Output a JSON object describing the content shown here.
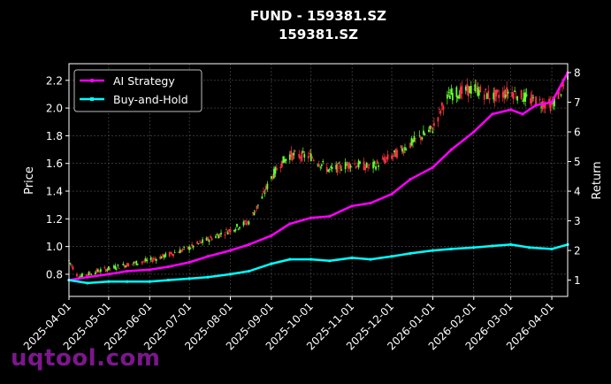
{
  "chart_data": {
    "type": "line",
    "title": "FUND - 159381.SZ",
    "subtitle": "159381.SZ",
    "ylabel": "Price",
    "y2label": "Return",
    "ylim": [
      0.64,
      2.32
    ],
    "y2lim": [
      0.45,
      8.3
    ],
    "y_ticks": [
      "0.8",
      "1.0",
      "1.2",
      "1.4",
      "1.6",
      "1.8",
      "2.0",
      "2.2"
    ],
    "y2_ticks": [
      "1",
      "2",
      "3",
      "4",
      "5",
      "6",
      "7",
      "8"
    ],
    "x_ticks": [
      "2025-04-01",
      "2025-05-01",
      "2025-06-01",
      "2025-07-01",
      "2025-08-01",
      "2025-09-01",
      "2025-10-01",
      "2025-11-01",
      "2025-12-01",
      "2026-01-01",
      "2026-02-01",
      "2026-03-01",
      "2026-04-01"
    ],
    "xlim": [
      "2025-04-01",
      "2026-04-13"
    ],
    "grid": true,
    "legend_position": "top-left",
    "candles_up_color": "#66ff33",
    "candles_down_color": "#ff3344",
    "price_series": {
      "x": [
        "2025-04-01",
        "2025-04-08",
        "2025-04-15",
        "2025-04-22",
        "2025-05-01",
        "2025-05-15",
        "2025-06-01",
        "2025-06-15",
        "2025-07-01",
        "2025-07-15",
        "2025-08-01",
        "2025-08-15",
        "2025-08-25",
        "2025-09-01",
        "2025-09-08",
        "2025-09-15",
        "2025-10-01",
        "2025-10-15",
        "2025-11-01",
        "2025-11-15",
        "2025-12-01",
        "2025-12-15",
        "2026-01-01",
        "2026-01-10",
        "2026-01-15",
        "2026-01-25",
        "2026-02-01",
        "2026-02-15",
        "2026-03-01",
        "2026-03-15",
        "2026-04-01",
        "2026-04-13"
      ],
      "values": [
        0.9,
        0.78,
        0.8,
        0.82,
        0.84,
        0.87,
        0.9,
        0.94,
        0.99,
        1.05,
        1.12,
        1.18,
        1.35,
        1.5,
        1.6,
        1.66,
        1.65,
        1.55,
        1.6,
        1.57,
        1.65,
        1.74,
        1.85,
        2.05,
        2.1,
        2.12,
        2.14,
        2.08,
        2.12,
        2.06,
        2.02,
        2.2
      ]
    },
    "series": [
      {
        "name": "AI Strategy",
        "color": "#ff00ff",
        "x": [
          "2025-04-01",
          "2025-04-15",
          "2025-05-01",
          "2025-05-15",
          "2025-06-01",
          "2025-06-15",
          "2025-07-01",
          "2025-07-15",
          "2025-08-01",
          "2025-08-15",
          "2025-09-01",
          "2025-09-15",
          "2025-10-01",
          "2025-10-15",
          "2025-11-01",
          "2025-11-15",
          "2025-12-01",
          "2025-12-15",
          "2026-01-01",
          "2026-01-15",
          "2026-02-01",
          "2026-02-15",
          "2026-03-01",
          "2026-03-10",
          "2026-03-20",
          "2026-04-01",
          "2026-04-13"
        ],
        "values": [
          1.0,
          1.1,
          1.2,
          1.3,
          1.35,
          1.45,
          1.6,
          1.8,
          2.0,
          2.2,
          2.5,
          2.9,
          3.1,
          3.15,
          3.5,
          3.6,
          3.9,
          4.4,
          4.8,
          5.4,
          6.0,
          6.6,
          6.75,
          6.6,
          6.9,
          7.0,
          8.0
        ]
      },
      {
        "name": "Buy-and-Hold",
        "color": "#00ffff",
        "x": [
          "2025-04-01",
          "2025-04-15",
          "2025-05-01",
          "2025-05-15",
          "2025-06-01",
          "2025-06-15",
          "2025-07-01",
          "2025-07-15",
          "2025-08-01",
          "2025-08-15",
          "2025-09-01",
          "2025-09-15",
          "2025-10-01",
          "2025-10-15",
          "2025-11-01",
          "2025-11-15",
          "2025-12-01",
          "2025-12-15",
          "2026-01-01",
          "2026-01-15",
          "2026-02-01",
          "2026-02-15",
          "2026-03-01",
          "2026-03-15",
          "2026-04-01",
          "2026-04-13"
        ],
        "values": [
          1.0,
          0.9,
          0.95,
          0.95,
          0.95,
          1.0,
          1.05,
          1.1,
          1.2,
          1.3,
          1.55,
          1.7,
          1.7,
          1.65,
          1.75,
          1.7,
          1.8,
          1.9,
          2.0,
          2.05,
          2.1,
          2.15,
          2.2,
          2.1,
          2.05,
          2.2
        ]
      }
    ]
  },
  "watermark": "uqtool.com"
}
